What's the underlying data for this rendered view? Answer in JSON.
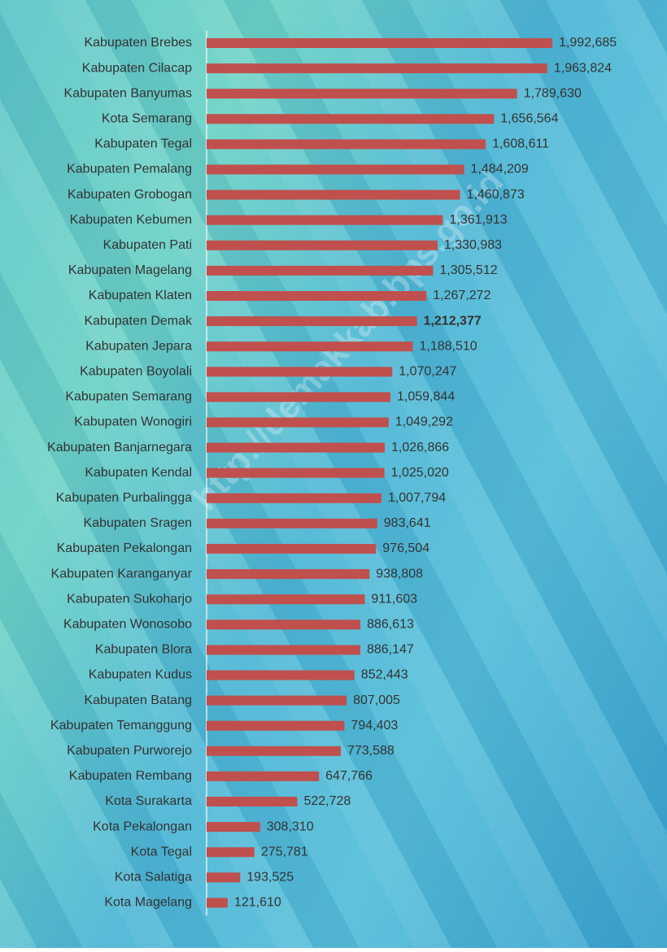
{
  "chart_data": {
    "type": "bar",
    "orientation": "horizontal",
    "watermark": "http://demakkab.bps.go.id",
    "color": "#c0504d",
    "highlight_category": "Kabupaten Demak",
    "categories": [
      "Kabupaten Brebes",
      "Kabupaten Cilacap",
      "Kabupaten Banyumas",
      "Kota Semarang",
      "Kabupaten Tegal",
      "Kabupaten Pemalang",
      "Kabupaten Grobogan",
      "Kabupaten Kebumen",
      "Kabupaten Pati",
      "Kabupaten Magelang",
      "Kabupaten Klaten",
      "Kabupaten Demak",
      "Kabupaten Jepara",
      "Kabupaten Boyolali",
      "Kabupaten Semarang",
      "Kabupaten Wonogiri",
      "Kabupaten Banjarnegara",
      "Kabupaten Kendal",
      "Kabupaten Purbalingga",
      "Kabupaten Sragen",
      "Kabupaten Pekalongan",
      "Kabupaten Karanganyar",
      "Kabupaten Sukoharjo",
      "Kabupaten Wonosobo",
      "Kabupaten Blora",
      "Kabupaten Kudus",
      "Kabupaten Batang",
      "Kabupaten Temanggung",
      "Kabupaten Purworejo",
      "Kabupaten Rembang",
      "Kota Surakarta",
      "Kota Pekalongan",
      "Kota Tegal",
      "Kota Salatiga",
      "Kota Magelang"
    ],
    "values": [
      1992685,
      1963824,
      1789630,
      1656564,
      1608611,
      1484209,
      1460873,
      1361913,
      1330983,
      1305512,
      1267272,
      1212377,
      1188510,
      1070247,
      1059844,
      1049292,
      1026866,
      1025020,
      1007794,
      983641,
      976504,
      938808,
      911603,
      886613,
      886147,
      852443,
      807005,
      794403,
      773588,
      647766,
      522728,
      308310,
      275781,
      193525,
      121610
    ],
    "value_labels": [
      "1,992,685",
      "1,963,824",
      "1,789,630",
      "1,656,564",
      "1,608,611",
      "1,484,209",
      "1,460,873",
      "1,361,913",
      "1,330,983",
      "1,305,512",
      "1,267,272",
      "1,212,377",
      "1,188,510",
      "1,070,247",
      "1,059,844",
      "1,049,292",
      "1,026,866",
      "1,025,020",
      "1,007,794",
      "983,641",
      "976,504",
      "938,808",
      "911,603",
      "886,613",
      "886,147",
      "852,443",
      "807,005",
      "794,403",
      "773,588",
      "647,766",
      "522,728",
      "308,310",
      "275,781",
      "193,525",
      "121,610"
    ]
  }
}
